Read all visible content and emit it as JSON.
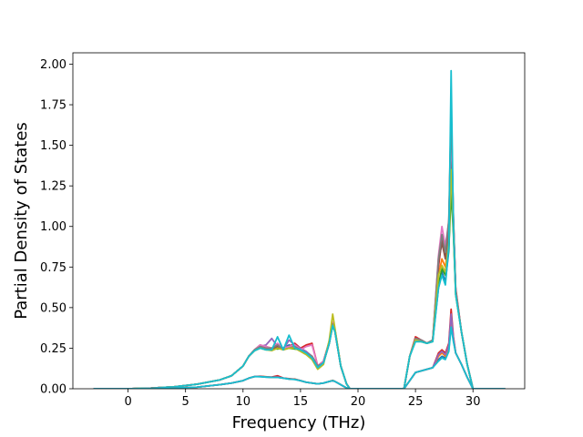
{
  "chart_data": {
    "type": "line",
    "title": "",
    "xlabel": "Frequency (THz)",
    "ylabel": "Partial Density of States",
    "xlim": [
      -4.8,
      34.5
    ],
    "ylim": [
      0,
      2.07
    ],
    "xticks": [
      0,
      5,
      10,
      15,
      20,
      25,
      30
    ],
    "xtick_labels": [
      "0",
      "5",
      "10",
      "15",
      "20",
      "25",
      "30"
    ],
    "yticks": [
      0,
      0.25,
      0.5,
      0.75,
      1.0,
      1.25,
      1.5,
      1.75,
      2.0
    ],
    "ytick_labels": [
      "0.00",
      "0.25",
      "0.50",
      "0.75",
      "1.00",
      "1.25",
      "1.50",
      "1.75",
      "2.00"
    ],
    "grid": false,
    "legend": "none",
    "x": [
      -3.0,
      0.0,
      2.0,
      4.0,
      6.0,
      8.0,
      9.0,
      10.0,
      10.5,
      11.0,
      11.5,
      12.0,
      12.5,
      13.0,
      13.5,
      14.0,
      14.5,
      15.0,
      15.5,
      16.0,
      16.5,
      17.0,
      17.5,
      17.8,
      18.0,
      18.5,
      19.0,
      19.3,
      20.0,
      24.0,
      24.5,
      25.0,
      25.5,
      26.0,
      26.5,
      27.0,
      27.3,
      27.6,
      27.9,
      28.1,
      28.3,
      28.5,
      29.0,
      29.5,
      30.0,
      32.8
    ],
    "series": [
      {
        "color": "#1f77b4",
        "values": [
          0,
          0,
          0.004,
          0.012,
          0.028,
          0.055,
          0.08,
          0.14,
          0.2,
          0.235,
          0.26,
          0.25,
          0.245,
          0.26,
          0.25,
          0.27,
          0.26,
          0.24,
          0.22,
          0.2,
          0.14,
          0.16,
          0.28,
          0.4,
          0.36,
          0.14,
          0.03,
          0,
          0,
          0,
          0.2,
          0.3,
          0.295,
          0.28,
          0.3,
          0.62,
          0.72,
          0.66,
          0.85,
          1.35,
          1.02,
          0.6,
          0.35,
          0.15,
          0,
          0
        ]
      },
      {
        "color": "#ff7f0e",
        "values": [
          0,
          0,
          0.004,
          0.012,
          0.028,
          0.055,
          0.08,
          0.14,
          0.2,
          0.235,
          0.255,
          0.26,
          0.25,
          0.255,
          0.24,
          0.26,
          0.25,
          0.24,
          0.22,
          0.19,
          0.14,
          0.17,
          0.29,
          0.41,
          0.36,
          0.14,
          0.03,
          0,
          0,
          0,
          0.2,
          0.31,
          0.3,
          0.28,
          0.3,
          0.7,
          0.8,
          0.75,
          0.92,
          1.28,
          0.98,
          0.6,
          0.35,
          0.15,
          0,
          0
        ]
      },
      {
        "color": "#2ca02c",
        "values": [
          0,
          0,
          0.004,
          0.012,
          0.028,
          0.055,
          0.08,
          0.14,
          0.2,
          0.235,
          0.25,
          0.24,
          0.25,
          0.245,
          0.25,
          0.25,
          0.245,
          0.24,
          0.22,
          0.19,
          0.13,
          0.16,
          0.28,
          0.39,
          0.35,
          0.14,
          0.03,
          0,
          0,
          0,
          0.2,
          0.3,
          0.29,
          0.28,
          0.3,
          0.64,
          0.74,
          0.7,
          0.86,
          1.22,
          0.95,
          0.58,
          0.35,
          0.15,
          0,
          0
        ]
      },
      {
        "color": "#d62728",
        "values": [
          0,
          0,
          0.004,
          0.012,
          0.028,
          0.055,
          0.08,
          0.14,
          0.2,
          0.24,
          0.27,
          0.25,
          0.24,
          0.27,
          0.25,
          0.26,
          0.28,
          0.25,
          0.27,
          0.28,
          0.14,
          0.17,
          0.29,
          0.41,
          0.36,
          0.14,
          0.03,
          0,
          0,
          0,
          0.2,
          0.32,
          0.3,
          0.28,
          0.3,
          0.75,
          0.92,
          0.82,
          1.0,
          1.7,
          1.05,
          0.62,
          0.35,
          0.15,
          0,
          0
        ]
      },
      {
        "color": "#9467bd",
        "values": [
          0,
          0,
          0.004,
          0.012,
          0.028,
          0.055,
          0.08,
          0.14,
          0.2,
          0.24,
          0.26,
          0.27,
          0.31,
          0.26,
          0.24,
          0.3,
          0.27,
          0.25,
          0.23,
          0.2,
          0.14,
          0.17,
          0.29,
          0.4,
          0.36,
          0.14,
          0.03,
          0,
          0,
          0,
          0.2,
          0.3,
          0.3,
          0.28,
          0.3,
          0.8,
          0.95,
          0.85,
          1.02,
          1.58,
          1.05,
          0.6,
          0.35,
          0.15,
          0,
          0
        ]
      },
      {
        "color": "#8c564b",
        "values": [
          0,
          0,
          0.004,
          0.012,
          0.028,
          0.055,
          0.08,
          0.14,
          0.2,
          0.24,
          0.26,
          0.25,
          0.24,
          0.26,
          0.25,
          0.25,
          0.26,
          0.24,
          0.22,
          0.2,
          0.14,
          0.16,
          0.28,
          0.4,
          0.35,
          0.14,
          0.03,
          0,
          0,
          0,
          0.2,
          0.31,
          0.3,
          0.28,
          0.3,
          0.78,
          0.9,
          0.8,
          0.98,
          1.5,
          1.02,
          0.6,
          0.35,
          0.15,
          0,
          0
        ]
      },
      {
        "color": "#e377c2",
        "values": [
          0,
          0,
          0.004,
          0.012,
          0.028,
          0.055,
          0.08,
          0.14,
          0.2,
          0.24,
          0.27,
          0.26,
          0.25,
          0.28,
          0.25,
          0.26,
          0.27,
          0.24,
          0.26,
          0.27,
          0.14,
          0.17,
          0.29,
          0.41,
          0.36,
          0.14,
          0.03,
          0,
          0,
          0,
          0.2,
          0.31,
          0.3,
          0.28,
          0.3,
          0.82,
          1.0,
          0.88,
          1.03,
          1.62,
          1.03,
          0.6,
          0.35,
          0.15,
          0,
          0
        ]
      },
      {
        "color": "#7f7f7f",
        "values": [
          0,
          0,
          0.004,
          0.012,
          0.028,
          0.055,
          0.08,
          0.14,
          0.2,
          0.24,
          0.26,
          0.25,
          0.25,
          0.27,
          0.24,
          0.25,
          0.26,
          0.24,
          0.22,
          0.2,
          0.14,
          0.16,
          0.29,
          0.4,
          0.36,
          0.14,
          0.03,
          0,
          0,
          0,
          0.2,
          0.31,
          0.3,
          0.28,
          0.3,
          0.8,
          0.95,
          0.84,
          1.04,
          1.72,
          1.05,
          0.6,
          0.35,
          0.15,
          0,
          0
        ]
      },
      {
        "color": "#bcbd22",
        "values": [
          0,
          0,
          0.004,
          0.012,
          0.028,
          0.055,
          0.08,
          0.14,
          0.2,
          0.235,
          0.25,
          0.24,
          0.235,
          0.25,
          0.24,
          0.25,
          0.25,
          0.23,
          0.21,
          0.18,
          0.12,
          0.15,
          0.3,
          0.46,
          0.37,
          0.14,
          0.03,
          0,
          0,
          0,
          0.2,
          0.3,
          0.29,
          0.28,
          0.29,
          0.7,
          0.76,
          0.72,
          0.9,
          1.35,
          0.98,
          0.58,
          0.35,
          0.15,
          0,
          0
        ]
      },
      {
        "color": "#17becf",
        "values": [
          0,
          0,
          0.004,
          0.012,
          0.028,
          0.055,
          0.08,
          0.14,
          0.2,
          0.235,
          0.25,
          0.24,
          0.24,
          0.32,
          0.24,
          0.33,
          0.25,
          0.24,
          0.22,
          0.19,
          0.13,
          0.16,
          0.28,
          0.39,
          0.35,
          0.14,
          0.03,
          0,
          0,
          0,
          0.2,
          0.29,
          0.29,
          0.28,
          0.29,
          0.62,
          0.7,
          0.64,
          0.88,
          1.96,
          1.0,
          0.58,
          0.35,
          0.15,
          0,
          0
        ]
      },
      {
        "color": "#1f77b4",
        "values": [
          0,
          0,
          0.001,
          0.004,
          0.01,
          0.025,
          0.035,
          0.05,
          0.065,
          0.075,
          0.075,
          0.072,
          0.07,
          0.07,
          0.065,
          0.06,
          0.058,
          0.05,
          0.04,
          0.035,
          0.03,
          0.035,
          0.045,
          0.05,
          0.045,
          0.025,
          0.005,
          0,
          0,
          0,
          0.05,
          0.1,
          0.11,
          0.12,
          0.13,
          0.18,
          0.2,
          0.19,
          0.24,
          0.4,
          0.3,
          0.22,
          0.15,
          0.07,
          0,
          0
        ]
      },
      {
        "color": "#ff7f0e",
        "values": [
          0,
          0,
          0.001,
          0.004,
          0.01,
          0.025,
          0.035,
          0.05,
          0.065,
          0.075,
          0.078,
          0.074,
          0.07,
          0.072,
          0.066,
          0.06,
          0.06,
          0.05,
          0.04,
          0.035,
          0.03,
          0.035,
          0.045,
          0.052,
          0.045,
          0.025,
          0.005,
          0,
          0,
          0,
          0.05,
          0.1,
          0.11,
          0.12,
          0.13,
          0.2,
          0.22,
          0.2,
          0.26,
          0.42,
          0.3,
          0.22,
          0.15,
          0.07,
          0,
          0
        ]
      },
      {
        "color": "#d62728",
        "values": [
          0,
          0,
          0.001,
          0.004,
          0.01,
          0.025,
          0.035,
          0.05,
          0.065,
          0.075,
          0.076,
          0.073,
          0.072,
          0.08,
          0.066,
          0.062,
          0.058,
          0.05,
          0.04,
          0.035,
          0.03,
          0.035,
          0.045,
          0.05,
          0.045,
          0.025,
          0.005,
          0,
          0,
          0,
          0.05,
          0.1,
          0.11,
          0.12,
          0.13,
          0.22,
          0.24,
          0.22,
          0.28,
          0.49,
          0.32,
          0.22,
          0.15,
          0.07,
          0,
          0
        ]
      },
      {
        "color": "#9467bd",
        "values": [
          0,
          0,
          0.001,
          0.004,
          0.01,
          0.025,
          0.035,
          0.05,
          0.065,
          0.075,
          0.076,
          0.073,
          0.071,
          0.072,
          0.066,
          0.06,
          0.058,
          0.05,
          0.04,
          0.035,
          0.03,
          0.035,
          0.045,
          0.05,
          0.045,
          0.025,
          0.005,
          0,
          0,
          0,
          0.05,
          0.1,
          0.11,
          0.12,
          0.13,
          0.21,
          0.23,
          0.21,
          0.27,
          0.46,
          0.31,
          0.22,
          0.15,
          0.07,
          0,
          0
        ]
      },
      {
        "color": "#17becf",
        "values": [
          0,
          0,
          0.001,
          0.004,
          0.01,
          0.025,
          0.035,
          0.05,
          0.065,
          0.075,
          0.074,
          0.072,
          0.07,
          0.07,
          0.065,
          0.06,
          0.057,
          0.05,
          0.04,
          0.035,
          0.03,
          0.035,
          0.045,
          0.05,
          0.045,
          0.025,
          0.005,
          0,
          0,
          0,
          0.05,
          0.1,
          0.11,
          0.12,
          0.13,
          0.17,
          0.19,
          0.18,
          0.23,
          0.38,
          0.29,
          0.22,
          0.15,
          0.07,
          0,
          0
        ]
      }
    ]
  }
}
